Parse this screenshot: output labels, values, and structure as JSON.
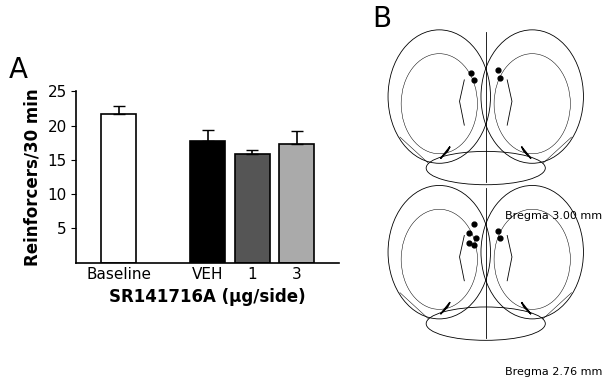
{
  "panel_labels": [
    "A",
    "B"
  ],
  "chart_data": {
    "type": "bar",
    "ylabel": "Reinforcers/30 min",
    "xlabel": "SR141716A (μg/side)",
    "categories": [
      "Baseline",
      "VEH",
      "1",
      "3"
    ],
    "values": [
      21.7,
      17.8,
      15.8,
      17.3
    ],
    "errors": [
      1.1,
      1.5,
      0.7,
      1.9
    ],
    "colors": [
      "#ffffff",
      "#000000",
      "#555555",
      "#aaaaaa"
    ],
    "ylim": [
      0,
      25
    ],
    "yticks": [
      5,
      10,
      15,
      20,
      25
    ],
    "grid": false
  },
  "diagram": {
    "sections": [
      {
        "label": "Bregma 3.00 mm"
      },
      {
        "label": "Bregma 2.76 mm"
      }
    ]
  }
}
